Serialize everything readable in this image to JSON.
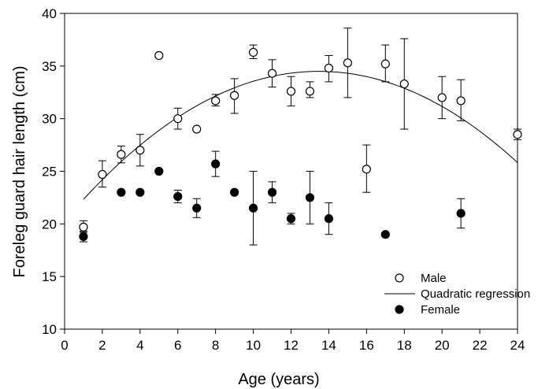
{
  "chart_data": {
    "type": "scatter",
    "xlabel": "Age (years)",
    "ylabel": "Foreleg guard hair length (cm)",
    "xlim": [
      0,
      24
    ],
    "ylim": [
      10,
      40
    ],
    "xticks": [
      0,
      2,
      4,
      6,
      8,
      10,
      12,
      14,
      16,
      18,
      20,
      22,
      24
    ],
    "yticks": [
      10,
      15,
      20,
      25,
      30,
      35,
      40
    ],
    "grid": false,
    "legend_position": "bottom-right",
    "series": [
      {
        "name": "Male",
        "marker": "open-circle",
        "color": "#000000",
        "points": [
          {
            "x": 1,
            "y": 19.7,
            "err_low": 19.2,
            "err_high": 20.3
          },
          {
            "x": 2,
            "y": 24.7,
            "err_low": 23.5,
            "err_high": 26.0
          },
          {
            "x": 3,
            "y": 26.6,
            "err_low": 25.8,
            "err_high": 27.4
          },
          {
            "x": 4,
            "y": 27.0,
            "err_low": 25.5,
            "err_high": 28.5
          },
          {
            "x": 5,
            "y": 36.0
          },
          {
            "x": 6,
            "y": 30.0,
            "err_low": 29.0,
            "err_high": 31.0
          },
          {
            "x": 7,
            "y": 29.0
          },
          {
            "x": 8,
            "y": 31.7,
            "err_low": 31.2,
            "err_high": 32.3
          },
          {
            "x": 9,
            "y": 32.2,
            "err_low": 30.5,
            "err_high": 33.8
          },
          {
            "x": 10,
            "y": 36.3,
            "err_low": 35.7,
            "err_high": 37.0
          },
          {
            "x": 11,
            "y": 34.3,
            "err_low": 33.0,
            "err_high": 35.6
          },
          {
            "x": 12,
            "y": 32.6,
            "err_low": 31.2,
            "err_high": 34.0
          },
          {
            "x": 13,
            "y": 32.6,
            "err_low": 32.0,
            "err_high": 33.5
          },
          {
            "x": 14,
            "y": 34.8,
            "err_low": 33.5,
            "err_high": 36.0
          },
          {
            "x": 15,
            "y": 35.3,
            "err_low": 32.0,
            "err_high": 38.6
          },
          {
            "x": 16,
            "y": 25.2,
            "err_low": 23.0,
            "err_high": 27.5
          },
          {
            "x": 17,
            "y": 35.2,
            "err_low": 33.5,
            "err_high": 37.0
          },
          {
            "x": 18,
            "y": 33.3,
            "err_low": 29.0,
            "err_high": 37.6
          },
          {
            "x": 20,
            "y": 32.0,
            "err_low": 30.0,
            "err_high": 34.0
          },
          {
            "x": 21,
            "y": 31.7,
            "err_low": 29.8,
            "err_high": 33.7
          },
          {
            "x": 24,
            "y": 28.5,
            "err_low": 28.0,
            "err_high": 29.0
          }
        ]
      },
      {
        "name": "Female",
        "marker": "filled-circle",
        "color": "#000000",
        "points": [
          {
            "x": 1,
            "y": 18.8,
            "err_low": 18.3,
            "err_high": 19.3
          },
          {
            "x": 3,
            "y": 23.0
          },
          {
            "x": 4,
            "y": 23.0
          },
          {
            "x": 5,
            "y": 25.0
          },
          {
            "x": 6,
            "y": 22.6,
            "err_low": 22.0,
            "err_high": 23.2
          },
          {
            "x": 7,
            "y": 21.5,
            "err_low": 20.6,
            "err_high": 22.4
          },
          {
            "x": 8,
            "y": 25.7,
            "err_low": 24.5,
            "err_high": 26.9
          },
          {
            "x": 9,
            "y": 23.0
          },
          {
            "x": 10,
            "y": 21.5,
            "err_low": 18.0,
            "err_high": 25.0
          },
          {
            "x": 11,
            "y": 23.0,
            "err_low": 22.0,
            "err_high": 24.0
          },
          {
            "x": 12,
            "y": 20.5,
            "err_low": 20.0,
            "err_high": 21.0
          },
          {
            "x": 13,
            "y": 22.5,
            "err_low": 20.0,
            "err_high": 25.0
          },
          {
            "x": 14,
            "y": 20.5,
            "err_low": 19.0,
            "err_high": 22.0
          },
          {
            "x": 17,
            "y": 19.0
          },
          {
            "x": 21,
            "y": 21.0,
            "err_low": 19.6,
            "err_high": 22.4
          }
        ]
      }
    ],
    "regression": {
      "name": "Quadratic regression",
      "type": "line",
      "color": "#000000",
      "x_range": [
        1,
        24
      ],
      "coefficients": [
        20.3,
        2.107,
        -0.0782
      ]
    }
  }
}
